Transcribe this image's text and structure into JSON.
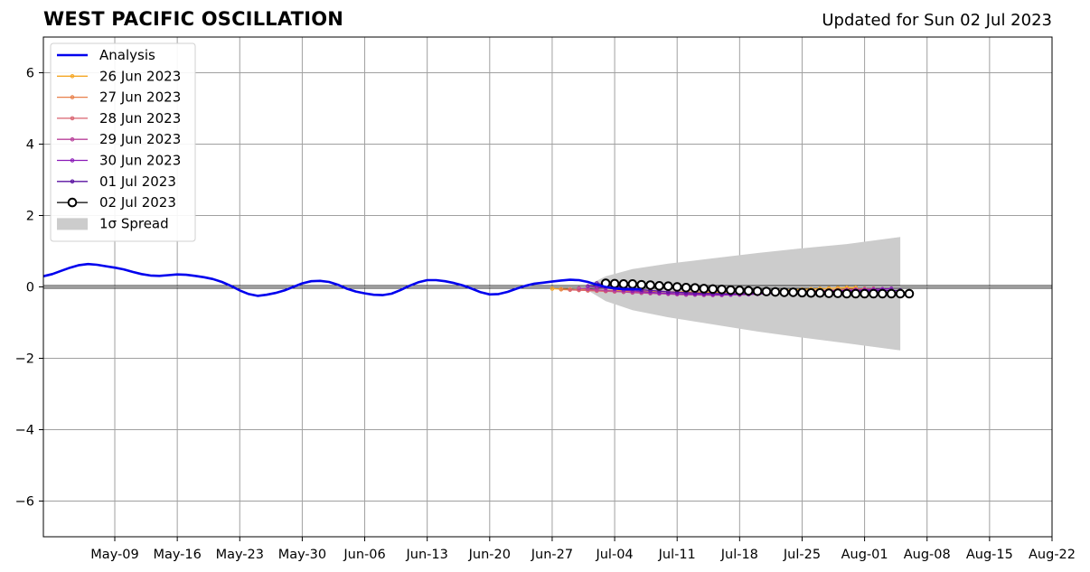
{
  "chart_data": {
    "type": "line",
    "title": "WEST PACIFIC OSCILLATION",
    "subtitle": "Updated for Sun 02 Jul 2023",
    "xlabel": "",
    "ylabel": "",
    "xlim": [
      "2023-05-01",
      "2023-08-22"
    ],
    "ylim": [
      -7,
      7
    ],
    "grid": true,
    "legend_position": "top-left",
    "x_ticks": [
      "2023-05-09",
      "2023-05-16",
      "2023-05-23",
      "2023-05-30",
      "2023-06-06",
      "2023-06-13",
      "2023-06-20",
      "2023-06-27",
      "2023-07-04",
      "2023-07-11",
      "2023-07-18",
      "2023-07-25",
      "2023-08-01",
      "2023-08-08",
      "2023-08-15",
      "2023-08-22"
    ],
    "x_tick_labels": [
      "May-09",
      "May-16",
      "May-23",
      "May-30",
      "Jun-06",
      "Jun-13",
      "Jun-20",
      "Jun-27",
      "Jul-04",
      "Jul-11",
      "Jul-18",
      "Jul-25",
      "Aug-01",
      "Aug-08",
      "Aug-15",
      "Aug-22"
    ],
    "y_ticks": [
      -6,
      -4,
      -2,
      0,
      2,
      4,
      6
    ],
    "y_tick_labels": [
      "−6",
      "−4",
      "−2",
      "0",
      "2",
      "4",
      "6"
    ],
    "analysis": {
      "name": "Analysis",
      "color": "#0000ee",
      "start": "2023-05-01",
      "values": [
        0.3,
        0.36,
        0.45,
        0.54,
        0.61,
        0.64,
        0.62,
        0.58,
        0.54,
        0.49,
        0.42,
        0.36,
        0.32,
        0.31,
        0.33,
        0.35,
        0.34,
        0.31,
        0.27,
        0.22,
        0.14,
        0.03,
        -0.1,
        -0.2,
        -0.25,
        -0.22,
        -0.17,
        -0.1,
        0.0,
        0.1,
        0.16,
        0.17,
        0.14,
        0.06,
        -0.05,
        -0.13,
        -0.18,
        -0.22,
        -0.23,
        -0.19,
        -0.09,
        0.03,
        0.13,
        0.19,
        0.19,
        0.16,
        0.11,
        0.04,
        -0.05,
        -0.15,
        -0.21,
        -0.2,
        -0.14,
        -0.05,
        0.03,
        0.09,
        0.12,
        0.15,
        0.18,
        0.2,
        0.19,
        0.14,
        0.06,
        0.0,
        -0.04,
        -0.06,
        -0.06,
        -0.07
      ]
    },
    "forecasts": [
      {
        "name": "26 Jun 2023",
        "color": "#f5a623",
        "start": "2023-06-27",
        "values": [
          -0.05,
          -0.06,
          -0.07,
          -0.08,
          -0.08,
          -0.09,
          -0.1,
          -0.1,
          -0.11,
          -0.12,
          -0.12,
          -0.13,
          -0.13,
          -0.14,
          -0.14,
          -0.14,
          -0.15,
          -0.15,
          -0.15,
          -0.15,
          -0.14,
          -0.14,
          -0.13,
          -0.12,
          -0.11,
          -0.1,
          -0.09,
          -0.08,
          -0.07,
          -0.06,
          -0.05,
          -0.04,
          -0.03,
          -0.02,
          -0.02
        ]
      },
      {
        "name": "27 Jun 2023",
        "color": "#e8804a",
        "start": "2023-06-28",
        "values": [
          -0.07,
          -0.08,
          -0.09,
          -0.1,
          -0.11,
          -0.12,
          -0.13,
          -0.14,
          -0.15,
          -0.16,
          -0.17,
          -0.18,
          -0.18,
          -0.19,
          -0.19,
          -0.2,
          -0.2,
          -0.2,
          -0.2,
          -0.19,
          -0.19,
          -0.18,
          -0.17,
          -0.16,
          -0.15,
          -0.14,
          -0.13,
          -0.12,
          -0.11,
          -0.1,
          -0.09,
          -0.08,
          -0.07,
          -0.06,
          -0.05
        ]
      },
      {
        "name": "28 Jun 2023",
        "color": "#d8606e",
        "start": "2023-06-29",
        "values": [
          -0.08,
          -0.09,
          -0.1,
          -0.11,
          -0.12,
          -0.13,
          -0.14,
          -0.15,
          -0.16,
          -0.17,
          -0.18,
          -0.19,
          -0.2,
          -0.2,
          -0.21,
          -0.21,
          -0.21,
          -0.21,
          -0.2,
          -0.2,
          -0.19,
          -0.18,
          -0.17,
          -0.16,
          -0.15,
          -0.14,
          -0.13,
          -0.12,
          -0.11,
          -0.1,
          -0.09,
          -0.08,
          -0.07,
          -0.06,
          -0.05
        ]
      },
      {
        "name": "29 Jun 2023",
        "color": "#b8409a",
        "start": "2023-06-30",
        "values": [
          -0.04,
          -0.06,
          -0.08,
          -0.1,
          -0.12,
          -0.14,
          -0.16,
          -0.17,
          -0.18,
          -0.19,
          -0.2,
          -0.21,
          -0.22,
          -0.22,
          -0.23,
          -0.23,
          -0.23,
          -0.22,
          -0.22,
          -0.21,
          -0.2,
          -0.19,
          -0.18,
          -0.17,
          -0.16,
          -0.15,
          -0.14,
          -0.13,
          -0.12,
          -0.11,
          -0.1,
          -0.09,
          -0.08,
          -0.07,
          -0.06
        ]
      },
      {
        "name": "30 Jun 2023",
        "color": "#8a1ab8",
        "start": "2023-07-01",
        "values": [
          0.02,
          0.0,
          -0.03,
          -0.06,
          -0.09,
          -0.11,
          -0.13,
          -0.15,
          -0.17,
          -0.18,
          -0.19,
          -0.2,
          -0.21,
          -0.21,
          -0.22,
          -0.22,
          -0.22,
          -0.21,
          -0.21,
          -0.2,
          -0.19,
          -0.18,
          -0.17,
          -0.16,
          -0.15,
          -0.14,
          -0.13,
          -0.12,
          -0.11,
          -0.1,
          -0.09,
          -0.08,
          -0.07,
          -0.06,
          -0.05
        ]
      },
      {
        "name": "01 Jul 2023",
        "color": "#5a10a0",
        "start": "2023-07-02",
        "values": [
          0.1,
          0.06,
          0.02,
          -0.02,
          -0.05,
          -0.08,
          -0.1,
          -0.12,
          -0.14,
          -0.15,
          -0.16,
          -0.17,
          -0.18,
          -0.18,
          -0.19,
          -0.19,
          -0.19,
          -0.19,
          -0.18,
          -0.18,
          -0.17,
          -0.16,
          -0.15,
          -0.15,
          -0.14,
          -0.14,
          -0.13,
          -0.13,
          -0.12,
          -0.12,
          -0.11,
          -0.11,
          -0.1,
          -0.1,
          -0.1
        ]
      },
      {
        "name": "02 Jul 2023",
        "color": "#000000",
        "start": "2023-07-03",
        "values": [
          0.1,
          0.09,
          0.08,
          0.08,
          0.06,
          0.05,
          0.03,
          0.02,
          0.0,
          -0.02,
          -0.03,
          -0.05,
          -0.06,
          -0.07,
          -0.09,
          -0.1,
          -0.11,
          -0.12,
          -0.13,
          -0.14,
          -0.15,
          -0.15,
          -0.16,
          -0.17,
          -0.17,
          -0.18,
          -0.18,
          -0.19,
          -0.19,
          -0.19,
          -0.19,
          -0.19,
          -0.19,
          -0.19,
          -0.19
        ]
      }
    ],
    "spread": {
      "name": "1σ Spread",
      "color": "#cccccc",
      "x": [
        "2023-07-01",
        "2023-07-03",
        "2023-07-06",
        "2023-07-10",
        "2023-07-15",
        "2023-07-20",
        "2023-07-25",
        "2023-07-30",
        "2023-08-05"
      ],
      "upper": [
        0.05,
        0.3,
        0.5,
        0.65,
        0.8,
        0.95,
        1.08,
        1.2,
        1.4
      ],
      "lower": [
        -0.1,
        -0.4,
        -0.65,
        -0.85,
        -1.05,
        -1.25,
        -1.42,
        -1.58,
        -1.78
      ]
    }
  }
}
